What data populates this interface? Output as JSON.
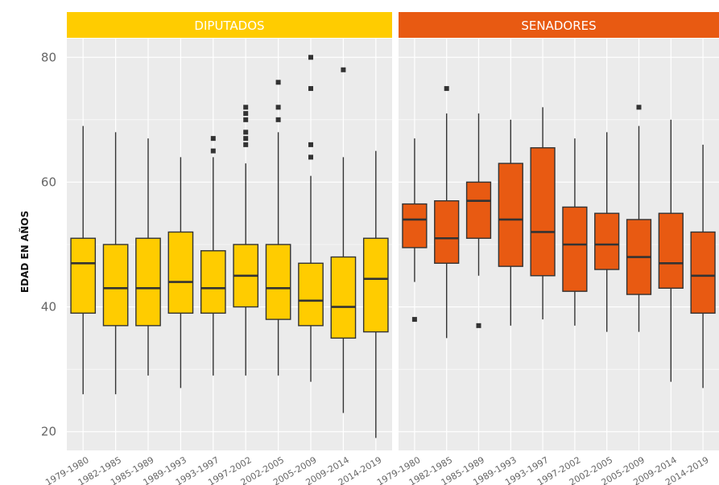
{
  "chart_data": {
    "type": "boxplot",
    "ylabel": "EDAD EN AÑOS",
    "ylim": [
      17,
      83
    ],
    "yticks": [
      20,
      40,
      60,
      80
    ],
    "grid": true,
    "categories": [
      "1979-1980",
      "1982-1985",
      "1985-1989",
      "1989-1993",
      "1993-1997",
      "1997-2002",
      "2002-2005",
      "2005-2009",
      "2009-2014",
      "2014-2019"
    ],
    "panels": [
      {
        "name": "DIPUTADOS",
        "strip_color": "#FFCC00",
        "box_color": "#FFCC00",
        "boxes": [
          {
            "min": 26,
            "q1": 39,
            "median": 47,
            "q3": 51,
            "max": 69,
            "outliers": []
          },
          {
            "min": 26,
            "q1": 37,
            "median": 43,
            "q3": 50,
            "max": 68,
            "outliers": []
          },
          {
            "min": 29,
            "q1": 37,
            "median": 43,
            "q3": 51,
            "max": 67,
            "outliers": []
          },
          {
            "min": 27,
            "q1": 39,
            "median": 44,
            "q3": 52,
            "max": 64,
            "outliers": []
          },
          {
            "min": 29,
            "q1": 39,
            "median": 43,
            "q3": 49,
            "max": 64,
            "outliers": [
              65,
              67
            ]
          },
          {
            "min": 29,
            "q1": 40,
            "median": 45,
            "q3": 50,
            "max": 63,
            "outliers": [
              66,
              67,
              68,
              70,
              71,
              72
            ]
          },
          {
            "min": 29,
            "q1": 38,
            "median": 43,
            "q3": 50,
            "max": 68,
            "outliers": [
              70,
              72,
              76
            ]
          },
          {
            "min": 28,
            "q1": 37,
            "median": 41,
            "q3": 47,
            "max": 61,
            "outliers": [
              64,
              66,
              75,
              80
            ]
          },
          {
            "min": 23,
            "q1": 35,
            "median": 40,
            "q3": 48,
            "max": 64,
            "outliers": [
              78
            ]
          },
          {
            "min": 19,
            "q1": 36,
            "median": 44.5,
            "q3": 51,
            "max": 65,
            "outliers": []
          }
        ]
      },
      {
        "name": "SENADORES",
        "strip_color": "#E85A12",
        "box_color": "#E85A12",
        "boxes": [
          {
            "min": 44,
            "q1": 49.5,
            "median": 54,
            "q3": 56.5,
            "max": 67,
            "outliers": [
              38
            ]
          },
          {
            "min": 35,
            "q1": 47,
            "median": 51,
            "q3": 57,
            "max": 71,
            "outliers": [
              75
            ]
          },
          {
            "min": 45,
            "q1": 51,
            "median": 57,
            "q3": 60,
            "max": 71,
            "outliers": [
              37
            ]
          },
          {
            "min": 37,
            "q1": 46.5,
            "median": 54,
            "q3": 63,
            "max": 70,
            "outliers": []
          },
          {
            "min": 38,
            "q1": 45,
            "median": 52,
            "q3": 65.5,
            "max": 72,
            "outliers": []
          },
          {
            "min": 37,
            "q1": 42.5,
            "median": 50,
            "q3": 56,
            "max": 67,
            "outliers": []
          },
          {
            "min": 36,
            "q1": 46,
            "median": 50,
            "q3": 55,
            "max": 68,
            "outliers": []
          },
          {
            "min": 36,
            "q1": 42,
            "median": 48,
            "q3": 54,
            "max": 69,
            "outliers": [
              72
            ]
          },
          {
            "min": 28,
            "q1": 43,
            "median": 47,
            "q3": 55,
            "max": 70,
            "outliers": []
          },
          {
            "min": 27,
            "q1": 39,
            "median": 45,
            "q3": 52,
            "max": 66,
            "outliers": []
          }
        ]
      }
    ]
  }
}
